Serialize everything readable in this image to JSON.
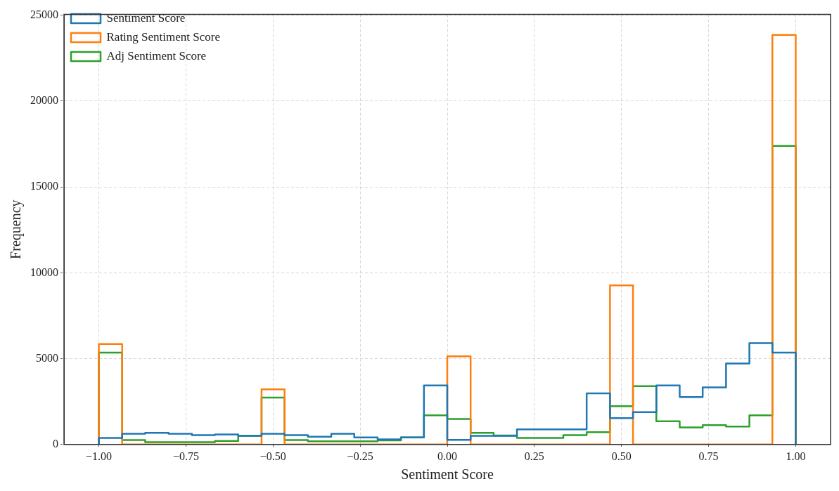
{
  "chart_data": {
    "type": "histogram",
    "xlabel": "Sentiment Score",
    "ylabel": "Frequency",
    "bins": [
      -1,
      -0.933,
      -0.867,
      -0.8,
      -0.733,
      -0.667,
      -0.6,
      -0.533,
      -0.467,
      -0.4,
      -0.333,
      -0.267,
      -0.2,
      -0.133,
      -0.067,
      0,
      0.067,
      0.133,
      0.2,
      0.267,
      0.333,
      0.4,
      0.467,
      0.533,
      0.6,
      0.667,
      0.733,
      0.8,
      0.867,
      0.933,
      1
    ],
    "series": [
      {
        "name": "Sentiment Score",
        "color": "#1f77b4",
        "values": [
          380,
          630,
          680,
          630,
          545,
          590,
          500,
          630,
          545,
          450,
          630,
          410,
          300,
          410,
          3440,
          270,
          500,
          500,
          885,
          885,
          885,
          2980,
          1540,
          1880,
          3440,
          2760,
          3330,
          4720,
          5900,
          5350
        ]
      },
      {
        "name": "Rating Sentiment Score",
        "color": "#ff7f0e",
        "values": [
          5850,
          0,
          0,
          0,
          0,
          0,
          0,
          3210,
          0,
          0,
          0,
          0,
          0,
          0,
          0,
          5140,
          0,
          0,
          0,
          0,
          0,
          0,
          9270,
          0,
          0,
          0,
          0,
          0,
          0,
          23850
        ]
      },
      {
        "name": "Adj Sentiment Score",
        "color": "#2ca02c",
        "values": [
          5350,
          260,
          140,
          140,
          140,
          210,
          515,
          2730,
          260,
          190,
          190,
          190,
          240,
          410,
          1700,
          1480,
          680,
          520,
          380,
          380,
          545,
          720,
          2230,
          3400,
          1350,
          990,
          1130,
          1050,
          1700,
          17390
        ]
      }
    ],
    "xlim": [
      -1.1,
      1.1
    ],
    "ylim": [
      0,
      25040
    ],
    "xticks": [
      {
        "value": -1,
        "label": "−1.00"
      },
      {
        "value": -0.75,
        "label": "−0.75"
      },
      {
        "value": -0.5,
        "label": "−0.50"
      },
      {
        "value": -0.25,
        "label": "−0.25"
      },
      {
        "value": 0,
        "label": "0.00"
      },
      {
        "value": 0.25,
        "label": "0.25"
      },
      {
        "value": 0.5,
        "label": "0.50"
      },
      {
        "value": 0.75,
        "label": "0.75"
      },
      {
        "value": 1,
        "label": "1.00"
      }
    ],
    "yticks": [
      0,
      5000,
      10000,
      15000,
      20000,
      25000
    ],
    "grid": true,
    "legend": "top left"
  }
}
